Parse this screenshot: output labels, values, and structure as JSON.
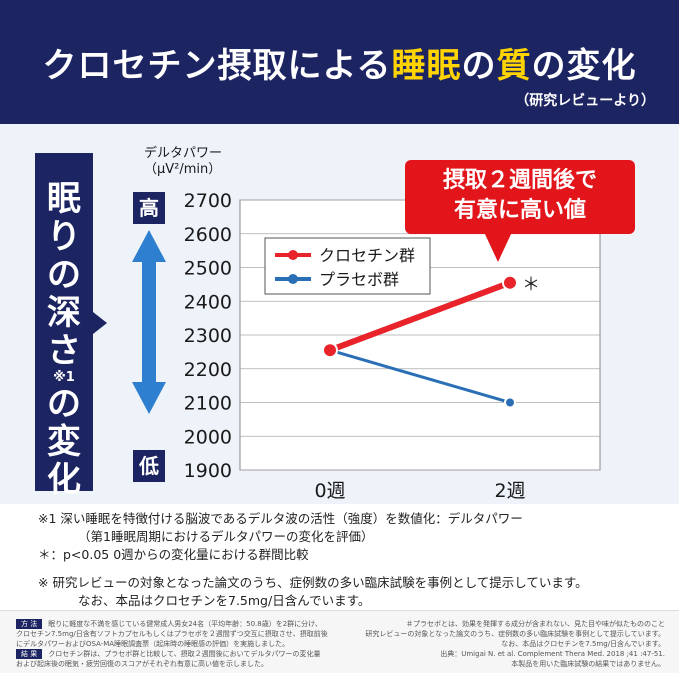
{
  "header": {
    "title_part1": "クロセチン摂取による",
    "title_highlight1": "睡眠",
    "title_part2": "の",
    "title_highlight2": "質",
    "title_part3": "の変化",
    "subtitle": "（研究レビューより）",
    "colors": {
      "background": "#1d2462",
      "highlight": "#ffd400"
    }
  },
  "depth_label": {
    "chars": [
      "眠",
      "り",
      "の",
      "深",
      "さ"
    ],
    "superscript": "※1",
    "chars2": [
      "の",
      "変",
      "化"
    ]
  },
  "scale": {
    "high": "高",
    "low": "低",
    "arrow_color": "#2f7fd0"
  },
  "callout": {
    "line1": "摂取２週間後で",
    "line2": "有意に高い値",
    "color": "#e1151a"
  },
  "chart_data": {
    "type": "line",
    "ylabel_line1": "デルタパワー",
    "ylabel_line2": "（μV²/min）",
    "categories": [
      "0週",
      "2週"
    ],
    "ylim": [
      1900,
      2700
    ],
    "yticks": [
      1900,
      2000,
      2100,
      2200,
      2300,
      2400,
      2500,
      2600,
      2700
    ],
    "grid": true,
    "legend_position": "top-left",
    "series": [
      {
        "name": "クロセチン群",
        "values": [
          2255,
          2455
        ],
        "color": "#e8232a"
      },
      {
        "name": "プラセボ群",
        "values": [
          2255,
          2100
        ],
        "color": "#2a6fb6"
      }
    ],
    "annotation": "＊"
  },
  "footnotes": {
    "n1": "※1 深い睡眠を特徴付ける脳波であるデルタ波の活性（強度）を数値化：デルタパワー",
    "n1b": "（第1睡眠周期におけるデルタパワーの変化を評価）",
    "n2": "＊：p<0.05 0週からの変化量における群間比較",
    "n3": "※ 研究レビューの対象となった論文のうち、症例数の多い臨床試験を事例として提示しています。",
    "n3b": "なお、本品はクロセチンを7.5mg/日含んでいます。"
  },
  "bottom": {
    "tag_method": "方 法",
    "method_1": "眠りに軽度な不満を感じている健常成人男女24名（平均年齢：50.8歳）を2群に分け、",
    "method_2": "クロセチン7.5mg/日含有ソフトカプセルもしくはプラセボを２週間ずつ交互に摂取させ、摂取前後",
    "method_3": "にデルタパワーおよびOSA-MA睡眠調査票（起床時の睡眠感の評価）を実施しました。",
    "tag_result": "結 果",
    "result_1": "クロセチン群は、プラセボ群と比較して、摂取２週間後においてデルタパワーの変化量",
    "result_2": "および起床後の眠気・疲労回復のスコアがそれぞれ有意に高い値を示しました。",
    "right_1": "＃プラセボとは、効果を発揮する成分が含まれない、見た目や味が似たもののこと",
    "right_2": "研究レビューの対象となった論文のうち、症例数の多い臨床試験を事例として提示しています。",
    "right_3": "なお、本品はクロセチンを7.5mg/日含んでいます。",
    "right_4": "出典：Umigai N. et al. Complement Thera Med. 2018 ;41 :47-51.",
    "right_5": "本製品を用いた臨床試験の結果ではありません。"
  }
}
